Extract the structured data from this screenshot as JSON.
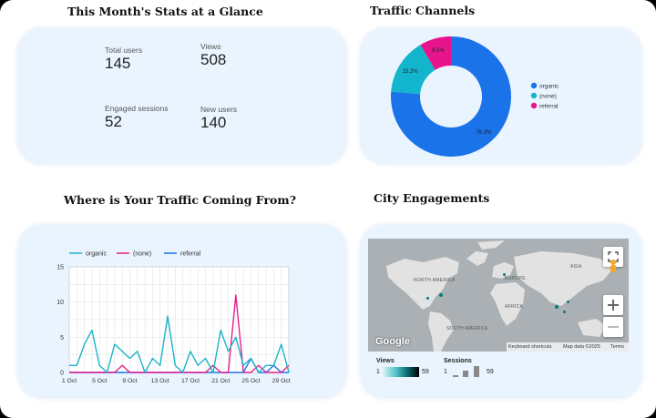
{
  "stats": {
    "title": "This Month's Stats at a Glance",
    "items": [
      {
        "label": "Total users",
        "value": "145"
      },
      {
        "label": "Views",
        "value": "508"
      },
      {
        "label": "Engaged sessions",
        "value": "52"
      },
      {
        "label": "New users",
        "value": "140"
      }
    ]
  },
  "traffic_channels": {
    "title": "Traffic Channels",
    "legend": [
      "organic",
      "(none)",
      "referral"
    ],
    "slice_labels": [
      "76.3%",
      "15.2%",
      "8.5%"
    ]
  },
  "traffic_origin": {
    "title": "Where is Your Traffic Coming From?"
  },
  "city": {
    "title": "City Engagements",
    "map_labels": {
      "north_america": "NORTH AMERICA",
      "south_america": "SOUTH AMERICA",
      "europe": "EUROPE",
      "africa": "AFRICA",
      "asia": "ASIA"
    },
    "google": "Google",
    "footer": {
      "shortcuts": "Keyboard shortcuts",
      "mapdata": "Map data ©2025",
      "terms": "Terms"
    },
    "views": {
      "title": "Views",
      "min": "1",
      "max": "59"
    },
    "sessions": {
      "title": "Sessions",
      "min": "1",
      "max": "59"
    }
  },
  "colors": {
    "organic": "#1ab4c6",
    "none": "#e91e8c",
    "referral": "#1a73e8",
    "pie_organic": "#1a73e8",
    "pie_none": "#12b5cb",
    "pie_referral": "#e8148c",
    "card_bg": "#eaf4fe"
  },
  "chart_data": [
    {
      "type": "pie",
      "title": "Traffic Channels",
      "categories": [
        "organic",
        "(none)",
        "referral"
      ],
      "values": [
        76.3,
        15.2,
        8.5
      ],
      "legend": "right"
    },
    {
      "type": "line",
      "title": "Where is Your Traffic Coming From?",
      "x": [
        "1 Oct",
        "2 Oct",
        "3 Oct",
        "4 Oct",
        "5 Oct",
        "6 Oct",
        "7 Oct",
        "8 Oct",
        "9 Oct",
        "10 Oct",
        "11 Oct",
        "12 Oct",
        "13 Oct",
        "14 Oct",
        "15 Oct",
        "16 Oct",
        "17 Oct",
        "18 Oct",
        "19 Oct",
        "20 Oct",
        "21 Oct",
        "22 Oct",
        "23 Oct",
        "24 Oct",
        "25 Oct",
        "26 Oct",
        "27 Oct",
        "28 Oct",
        "29 Oct",
        "30 Oct"
      ],
      "xticks": [
        "1 Oct",
        "5 Oct",
        "9 Oct",
        "13 Oct",
        "17 Oct",
        "21 Oct",
        "25 Oct",
        "29 Oct"
      ],
      "ylim": [
        0,
        15
      ],
      "yticks": [
        0,
        5,
        10,
        15
      ],
      "grid": true,
      "legend": "top",
      "series": [
        {
          "name": "organic",
          "values": [
            1,
            1,
            4,
            6,
            1,
            0,
            4,
            3,
            2,
            3,
            0,
            2,
            1,
            8,
            1,
            0,
            3,
            1,
            2,
            0,
            6,
            3,
            5,
            1,
            2,
            0,
            1,
            1,
            4,
            0
          ]
        },
        {
          "name": "(none)",
          "values": [
            0,
            0,
            0,
            0,
            0,
            0,
            0,
            1,
            0,
            0,
            0,
            0,
            0,
            0,
            0,
            0,
            0,
            0,
            0,
            1,
            0,
            0,
            11,
            0,
            0,
            1,
            0,
            0,
            0,
            1
          ]
        },
        {
          "name": "referral",
          "values": [
            0,
            0,
            0,
            0,
            0,
            0,
            0,
            0,
            0,
            0,
            0,
            0,
            0,
            0,
            0,
            0,
            0,
            0,
            0,
            0,
            0,
            0,
            0,
            0,
            2,
            0,
            0,
            1,
            0,
            0
          ]
        }
      ]
    }
  ]
}
